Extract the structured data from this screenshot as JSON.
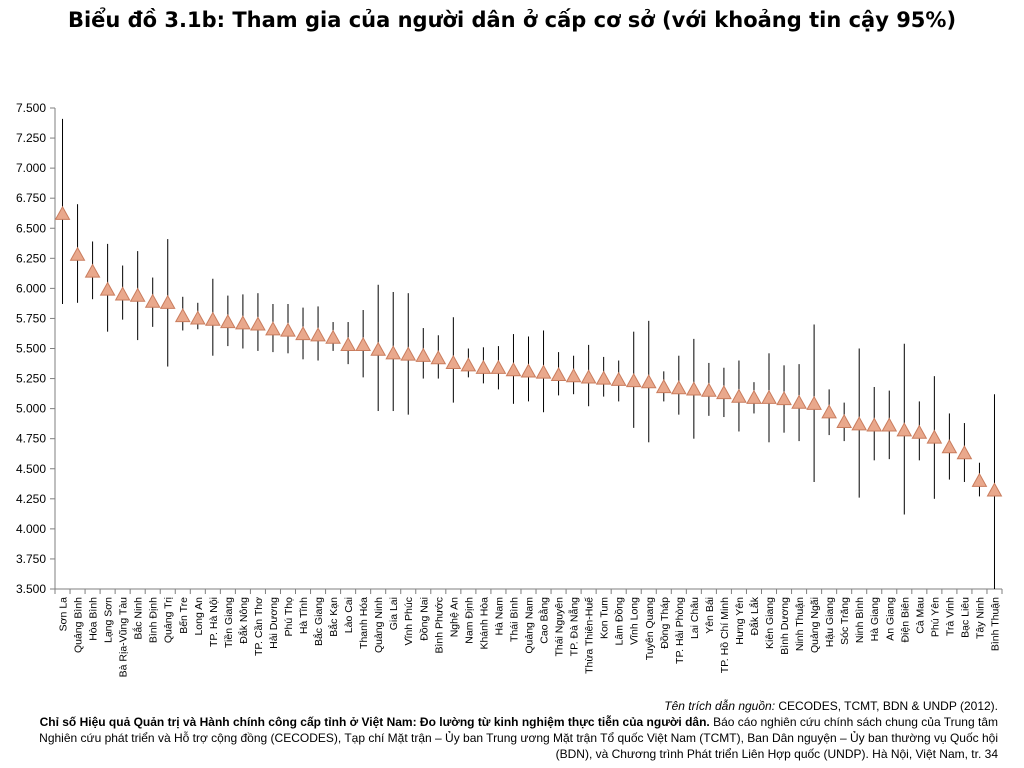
{
  "title": "Biểu đồ 3.1b: Tham gia của người dân ở cấp cơ sở (với khoảng tin cậy 95%)",
  "source": {
    "label": "Tên trích dẫn nguồn:",
    "authors": "CECODES, TCMT, BDN & UNDP (2012).",
    "bold_title": "Chỉ số Hiệu quả Quản trị và Hành chính công cấp tỉnh ở Việt Nam: Đo lường từ kinh nghiệm thực tiễn của người dân.",
    "rest": "Báo cáo nghiên cứu chính sách chung của Trung tâm Nghiên cứu phát triển và Hỗ trợ cộng đồng (CECODES), Tạp chí Mặt trận – Ủy ban Trung ương Mặt trận Tổ quốc Việt Nam (TCMT), Ban Dân nguyện – Ủy ban thường vụ Quốc hội (BDN), và Chương trình Phát triển Liên Hợp quốc (UNDP). Hà Nội, Việt Nam, tr. 34"
  },
  "colors": {
    "marker_fill": "#e9a88c",
    "marker_stroke": "#c97c5d",
    "axis": "#7f7f7f",
    "error_bar": "#000000"
  },
  "chart_data": {
    "type": "scatter",
    "title": "Biểu đồ 3.1b: Tham gia của người dân ở cấp cơ sở (với khoảng tin cậy 95%)",
    "ylim": [
      3.5,
      7.5
    ],
    "yticks": [
      "7.500",
      "7.250",
      "7.000",
      "6.750",
      "6.500",
      "6.250",
      "6.000",
      "5.750",
      "5.500",
      "5.250",
      "5.000",
      "4.750",
      "4.500",
      "4.250",
      "4.000",
      "3.750",
      "3.500"
    ],
    "grid": false,
    "categories": [
      "Sơn La",
      "Quảng Bình",
      "Hòa Bình",
      "Lạng Sơn",
      "Bà Rịa-Vũng Tàu",
      "Bắc Ninh",
      "Bình Định",
      "Quảng Trị",
      "Bến Tre",
      "Long An",
      "TP. Hà Nội",
      "Tiền Giang",
      "Đắk Nông",
      "TP. Cần Thơ",
      "Hải Dương",
      "Phú Thọ",
      "Hà Tĩnh",
      "Bắc Giang",
      "Bắc Kạn",
      "Lào Cai",
      "Thanh Hóa",
      "Quảng Ninh",
      "Gia Lai",
      "Vĩnh Phúc",
      "Đồng Nai",
      "Bình Phước",
      "Nghệ An",
      "Nam Định",
      "Khánh Hòa",
      "Hà Nam",
      "Thái Bình",
      "Quảng Nam",
      "Cao Bằng",
      "Thái Nguyên",
      "TP. Đà Nẵng",
      "Thừa Thiên-Huế",
      "Kon Tum",
      "Lâm Đồng",
      "Vĩnh Long",
      "Tuyên Quang",
      "Đồng Tháp",
      "TP. Hải Phòng",
      "Lai Châu",
      "Yên Bái",
      "TP. Hồ Chí Minh",
      "Hưng Yên",
      "Đắk Lắk",
      "Kiên Giang",
      "Bình Dương",
      "Ninh Thuận",
      "Quảng Ngãi",
      "Hậu Giang",
      "Sóc Trăng",
      "Ninh Bình",
      "Hà Giang",
      "An Giang",
      "Điện Biên",
      "Cà Mau",
      "Phú Yên",
      "Trà Vinh",
      "Bạc Liêu",
      "Tây Ninh",
      "Bình Thuận"
    ],
    "values": [
      6.62,
      6.28,
      6.14,
      5.99,
      5.95,
      5.94,
      5.89,
      5.88,
      5.77,
      5.75,
      5.74,
      5.72,
      5.71,
      5.7,
      5.66,
      5.65,
      5.62,
      5.61,
      5.59,
      5.53,
      5.53,
      5.49,
      5.46,
      5.45,
      5.44,
      5.42,
      5.38,
      5.36,
      5.34,
      5.34,
      5.32,
      5.31,
      5.3,
      5.28,
      5.27,
      5.26,
      5.25,
      5.24,
      5.23,
      5.22,
      5.18,
      5.17,
      5.16,
      5.15,
      5.13,
      5.1,
      5.09,
      5.09,
      5.08,
      5.05,
      5.04,
      4.97,
      4.89,
      4.87,
      4.86,
      4.86,
      4.82,
      4.8,
      4.76,
      4.68,
      4.63,
      4.4,
      4.32
    ],
    "lower": [
      5.87,
      5.88,
      5.91,
      5.64,
      5.74,
      5.57,
      5.68,
      5.35,
      5.65,
      5.66,
      5.44,
      5.52,
      5.5,
      5.48,
      5.47,
      5.46,
      5.41,
      5.4,
      5.48,
      5.37,
      5.26,
      4.98,
      4.98,
      4.95,
      5.25,
      5.25,
      5.05,
      5.26,
      5.21,
      5.16,
      5.04,
      5.06,
      4.97,
      5.11,
      5.12,
      5.02,
      5.1,
      5.06,
      4.84,
      4.72,
      5.06,
      4.95,
      4.75,
      4.94,
      4.93,
      4.81,
      4.96,
      4.72,
      4.8,
      4.73,
      4.39,
      4.78,
      4.73,
      4.26,
      4.57,
      4.58,
      4.12,
      4.57,
      4.25,
      4.41,
      4.39,
      4.27,
      3.5
    ],
    "upper": [
      7.41,
      6.7,
      6.39,
      6.37,
      6.19,
      6.31,
      6.09,
      6.41,
      5.93,
      5.88,
      6.08,
      5.94,
      5.95,
      5.96,
      5.87,
      5.87,
      5.84,
      5.85,
      5.72,
      5.72,
      5.82,
      6.03,
      5.97,
      5.96,
      5.67,
      5.61,
      5.76,
      5.5,
      5.51,
      5.52,
      5.62,
      5.6,
      5.65,
      5.47,
      5.44,
      5.53,
      5.43,
      5.4,
      5.64,
      5.73,
      5.31,
      5.44,
      5.58,
      5.38,
      5.34,
      5.4,
      5.22,
      5.46,
      5.36,
      5.37,
      5.7,
      5.16,
      5.05,
      5.5,
      5.18,
      5.15,
      5.54,
      5.06,
      5.27,
      4.96,
      4.88,
      4.55,
      5.12
    ]
  }
}
